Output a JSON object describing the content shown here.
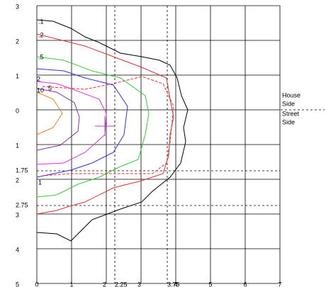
{
  "left_labels": [
    "3",
    "2",
    "1",
    "0",
    "1",
    "2",
    "3",
    "4",
    "5"
  ],
  "left_extra_labels": [
    "1.75",
    "2.75"
  ],
  "bottom_labels": [
    "0",
    "1",
    "2",
    "2.25",
    "3",
    "3.75",
    "4",
    "5",
    "6",
    "7"
  ],
  "side_labels": {
    "house": "House Side",
    "street": "Street Side"
  },
  "contour_labels": [
    ".1",
    ".2",
    ".5",
    "2",
    "10",
    "5",
    "1"
  ]
}
